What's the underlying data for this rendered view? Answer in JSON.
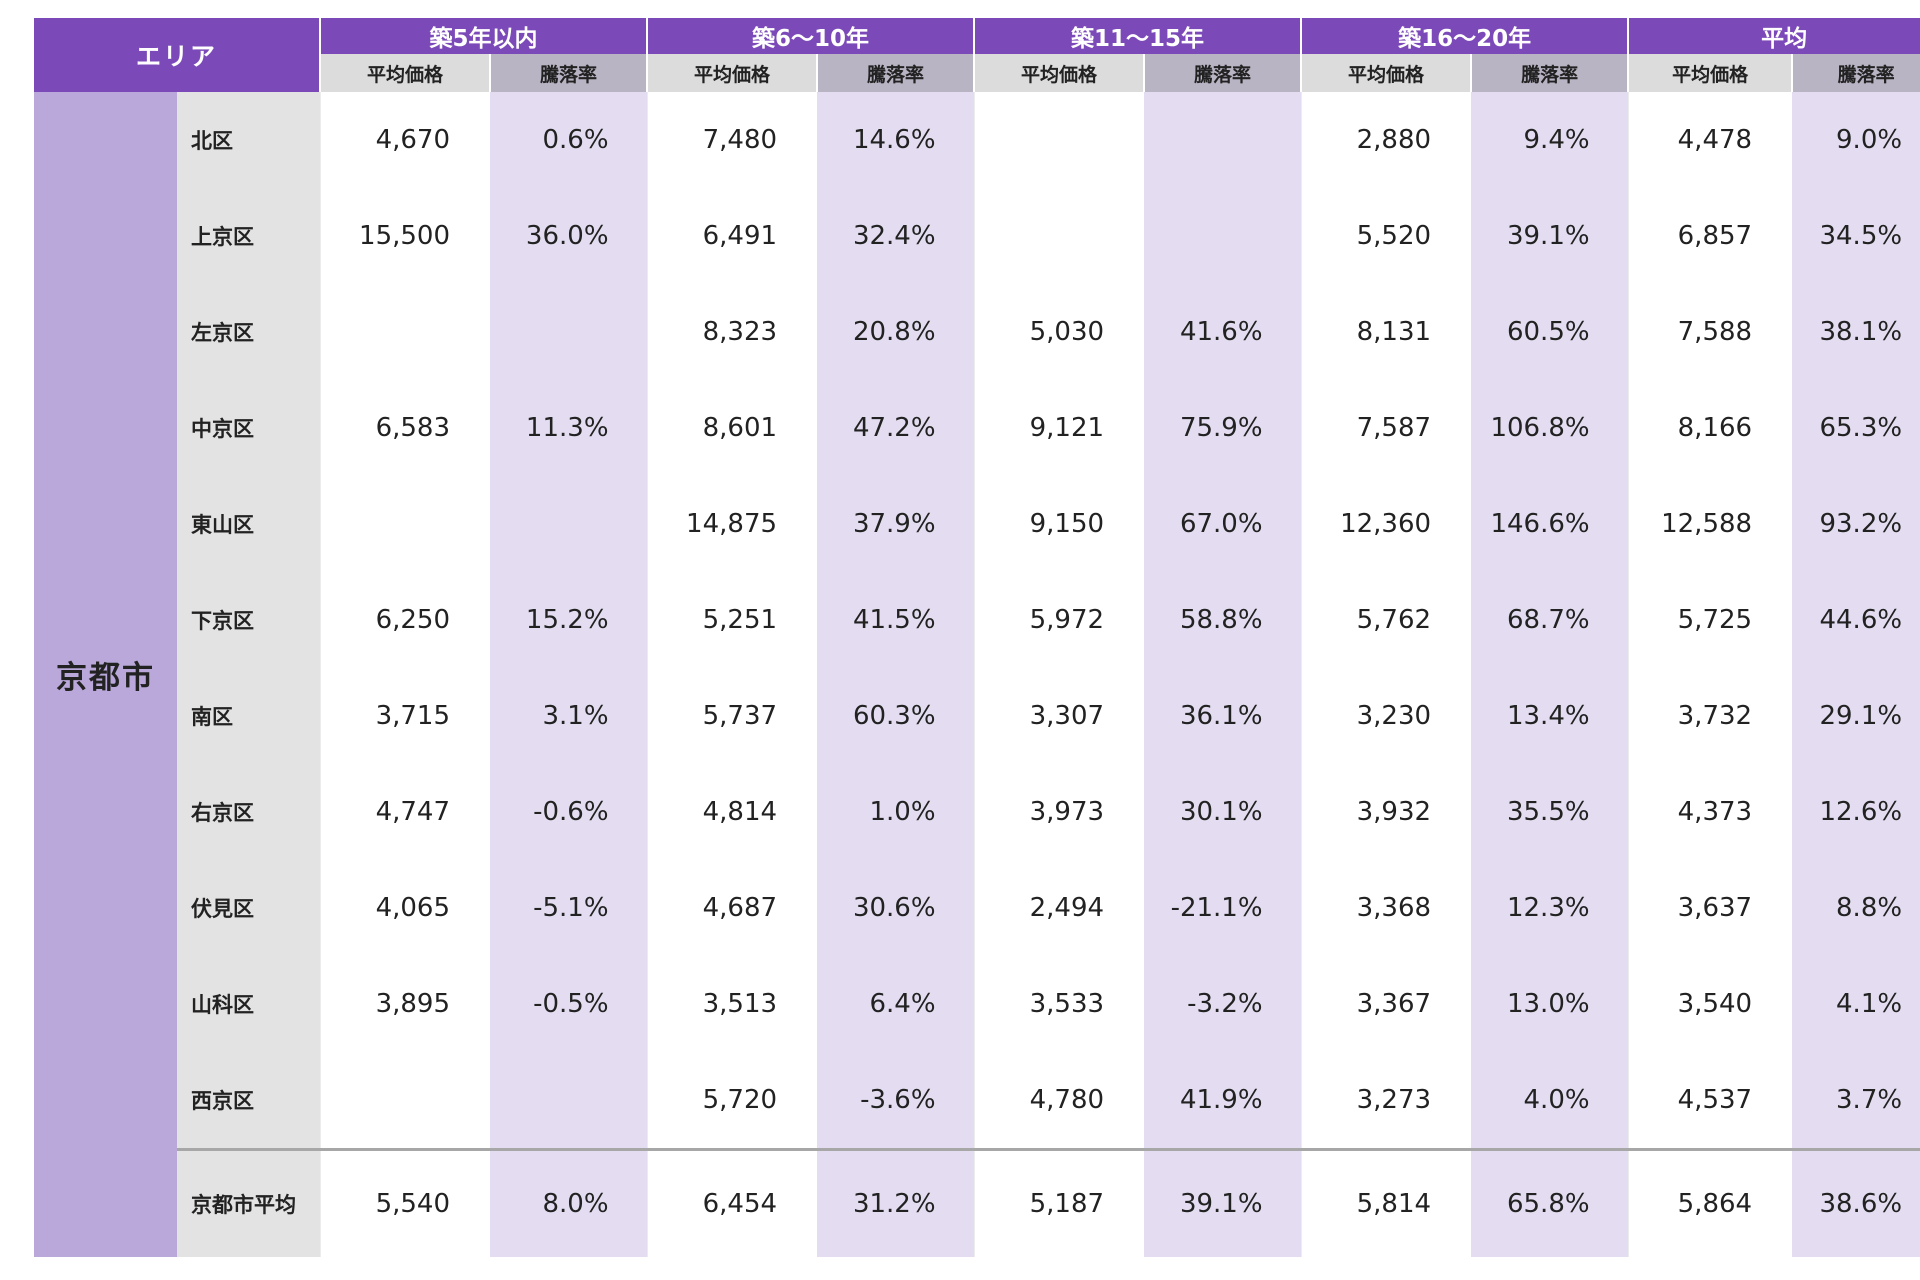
{
  "header": {
    "area": "エリア",
    "groups": [
      "築5年以内",
      "築6〜10年",
      "築11〜15年",
      "築16〜20年",
      "平均"
    ],
    "price_label": "平均価格",
    "rate_label": "騰落率"
  },
  "city": "京都市",
  "rows": [
    {
      "name": "北区",
      "v": [
        "4,670",
        "0.6%",
        "7,480",
        "14.6%",
        "",
        "",
        "2,880",
        "9.4%",
        "4,478",
        "9.0%"
      ]
    },
    {
      "name": "上京区",
      "v": [
        "15,500",
        "36.0%",
        "6,491",
        "32.4%",
        "",
        "",
        "5,520",
        "39.1%",
        "6,857",
        "34.5%"
      ]
    },
    {
      "name": "左京区",
      "v": [
        "",
        "",
        "8,323",
        "20.8%",
        "5,030",
        "41.6%",
        "8,131",
        "60.5%",
        "7,588",
        "38.1%"
      ]
    },
    {
      "name": "中京区",
      "v": [
        "6,583",
        "11.3%",
        "8,601",
        "47.2%",
        "9,121",
        "75.9%",
        "7,587",
        "106.8%",
        "8,166",
        "65.3%"
      ]
    },
    {
      "name": "東山区",
      "v": [
        "",
        "",
        "14,875",
        "37.9%",
        "9,150",
        "67.0%",
        "12,360",
        "146.6%",
        "12,588",
        "93.2%"
      ]
    },
    {
      "name": "下京区",
      "v": [
        "6,250",
        "15.2%",
        "5,251",
        "41.5%",
        "5,972",
        "58.8%",
        "5,762",
        "68.7%",
        "5,725",
        "44.6%"
      ]
    },
    {
      "name": "南区",
      "v": [
        "3,715",
        "3.1%",
        "5,737",
        "60.3%",
        "3,307",
        "36.1%",
        "3,230",
        "13.4%",
        "3,732",
        "29.1%"
      ]
    },
    {
      "name": "右京区",
      "v": [
        "4,747",
        "-0.6%",
        "4,814",
        "1.0%",
        "3,973",
        "30.1%",
        "3,932",
        "35.5%",
        "4,373",
        "12.6%"
      ]
    },
    {
      "name": "伏見区",
      "v": [
        "4,065",
        "-5.1%",
        "4,687",
        "30.6%",
        "2,494",
        "-21.1%",
        "3,368",
        "12.3%",
        "3,637",
        "8.8%"
      ]
    },
    {
      "name": "山科区",
      "v": [
        "3,895",
        "-0.5%",
        "3,513",
        "6.4%",
        "3,533",
        "-3.2%",
        "3,367",
        "13.0%",
        "3,540",
        "4.1%"
      ]
    },
    {
      "name": "西京区",
      "v": [
        "",
        "",
        "5,720",
        "-3.6%",
        "4,780",
        "41.9%",
        "3,273",
        "4.0%",
        "4,537",
        "3.7%"
      ]
    },
    {
      "name": "京都市平均",
      "v": [
        "5,540",
        "8.0%",
        "6,454",
        "31.2%",
        "5,187",
        "39.1%",
        "5,814",
        "65.8%",
        "5,864",
        "38.6%"
      ]
    }
  ],
  "colors": {
    "header_purple": "#7b4ab8",
    "city_cell": "#b9a8d9",
    "rate_column": "#e4ddf1",
    "district_column": "#e3e3e3"
  }
}
